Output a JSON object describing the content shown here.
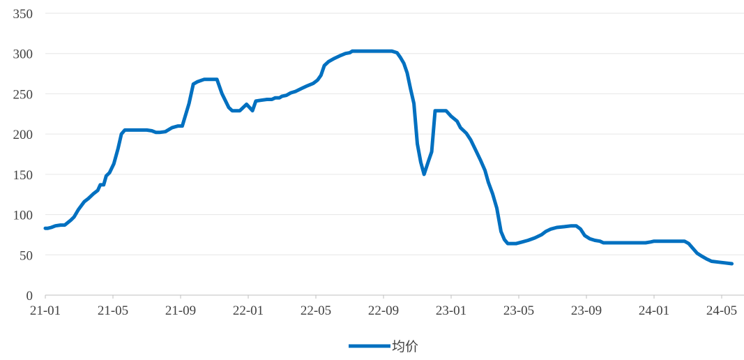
{
  "chart_data": {
    "type": "line",
    "title": "",
    "xlabel": "",
    "ylabel": "",
    "ylim": [
      0,
      350
    ],
    "y_ticks": [
      "0",
      "50",
      "100",
      "150",
      "200",
      "250",
      "300",
      "350"
    ],
    "x_ticks": [
      "21-01",
      "21-05",
      "21-09",
      "22-01",
      "22-05",
      "22-09",
      "23-01",
      "23-05",
      "23-09",
      "24-01",
      "24-05"
    ],
    "grid": "horizontal",
    "legend_position": "bottom-center",
    "color": "#0070C0",
    "series": [
      {
        "name": "均价",
        "points": [
          [
            0.0,
            83
          ],
          [
            0.15,
            83
          ],
          [
            0.35,
            84
          ],
          [
            0.6,
            86
          ],
          [
            0.9,
            87
          ],
          [
            1.15,
            87
          ],
          [
            1.5,
            93
          ],
          [
            1.7,
            97
          ],
          [
            1.95,
            106
          ],
          [
            2.3,
            116
          ],
          [
            2.55,
            120
          ],
          [
            2.85,
            126
          ],
          [
            3.1,
            130
          ],
          [
            3.25,
            137
          ],
          [
            3.45,
            137
          ],
          [
            3.6,
            148
          ],
          [
            3.8,
            152
          ],
          [
            4.05,
            163
          ],
          [
            4.3,
            182
          ],
          [
            4.5,
            200
          ],
          [
            4.7,
            205
          ],
          [
            5.2,
            205
          ],
          [
            5.6,
            205
          ],
          [
            6.0,
            205
          ],
          [
            6.3,
            204
          ],
          [
            6.55,
            202
          ],
          [
            6.75,
            202
          ],
          [
            7.1,
            203
          ],
          [
            7.5,
            208
          ],
          [
            7.85,
            210
          ],
          [
            8.1,
            210
          ],
          [
            8.5,
            238
          ],
          [
            8.75,
            262
          ],
          [
            9.0,
            265
          ],
          [
            9.4,
            268
          ],
          [
            9.75,
            268
          ],
          [
            10.15,
            268
          ],
          [
            10.45,
            250
          ],
          [
            10.85,
            233
          ],
          [
            11.05,
            229
          ],
          [
            11.5,
            229
          ],
          [
            11.9,
            237
          ],
          [
            12.25,
            229
          ],
          [
            12.45,
            241
          ],
          [
            12.75,
            242
          ],
          [
            13.1,
            243
          ],
          [
            13.4,
            243
          ],
          [
            13.6,
            245
          ],
          [
            13.85,
            245
          ],
          [
            14.0,
            247
          ],
          [
            14.25,
            248
          ],
          [
            14.5,
            251
          ],
          [
            14.8,
            253
          ],
          [
            15.2,
            257
          ],
          [
            15.5,
            260
          ],
          [
            15.85,
            263
          ],
          [
            16.1,
            267
          ],
          [
            16.3,
            273
          ],
          [
            16.5,
            285
          ],
          [
            16.75,
            290
          ],
          [
            17.1,
            294
          ],
          [
            17.4,
            297
          ],
          [
            17.75,
            300
          ],
          [
            18.0,
            301
          ],
          [
            18.15,
            303
          ],
          [
            18.5,
            303
          ],
          [
            19.0,
            303
          ],
          [
            19.5,
            303
          ],
          [
            20.0,
            303
          ],
          [
            20.5,
            303
          ],
          [
            20.8,
            301
          ],
          [
            21.0,
            295
          ],
          [
            21.2,
            288
          ],
          [
            21.4,
            276
          ],
          [
            21.6,
            256
          ],
          [
            21.8,
            238
          ],
          [
            22.0,
            188
          ],
          [
            22.2,
            165
          ],
          [
            22.4,
            150
          ],
          [
            22.65,
            166
          ],
          [
            22.85,
            178
          ],
          [
            23.05,
            229
          ],
          [
            23.3,
            229
          ],
          [
            23.7,
            229
          ],
          [
            24.0,
            222
          ],
          [
            24.35,
            216
          ],
          [
            24.55,
            208
          ],
          [
            24.9,
            201
          ],
          [
            25.15,
            193
          ],
          [
            25.45,
            180
          ],
          [
            25.75,
            167
          ],
          [
            26.0,
            155
          ],
          [
            26.2,
            140
          ],
          [
            26.45,
            126
          ],
          [
            26.7,
            108
          ],
          [
            26.95,
            79
          ],
          [
            27.15,
            69
          ],
          [
            27.35,
            64
          ],
          [
            27.6,
            64
          ],
          [
            27.85,
            64
          ],
          [
            28.2,
            66
          ],
          [
            28.55,
            68
          ],
          [
            28.95,
            71
          ],
          [
            29.35,
            75
          ],
          [
            29.6,
            79
          ],
          [
            29.9,
            82
          ],
          [
            30.25,
            84
          ],
          [
            30.7,
            85
          ],
          [
            31.1,
            86
          ],
          [
            31.4,
            86
          ],
          [
            31.65,
            82
          ],
          [
            31.9,
            74
          ],
          [
            32.2,
            70
          ],
          [
            32.5,
            68
          ],
          [
            32.8,
            67
          ],
          [
            33.0,
            65
          ],
          [
            33.5,
            65
          ],
          [
            34.0,
            65
          ],
          [
            34.5,
            65
          ],
          [
            35.0,
            65
          ],
          [
            35.5,
            65
          ],
          [
            35.8,
            66
          ],
          [
            36.0,
            67
          ],
          [
            36.5,
            67
          ],
          [
            37.0,
            67
          ],
          [
            37.5,
            67
          ],
          [
            37.8,
            67
          ],
          [
            38.05,
            64
          ],
          [
            38.3,
            58
          ],
          [
            38.55,
            52
          ],
          [
            38.85,
            48
          ],
          [
            39.1,
            45
          ],
          [
            39.4,
            42
          ],
          [
            39.8,
            41
          ],
          [
            40.2,
            40
          ],
          [
            40.6,
            39
          ]
        ]
      }
    ]
  }
}
